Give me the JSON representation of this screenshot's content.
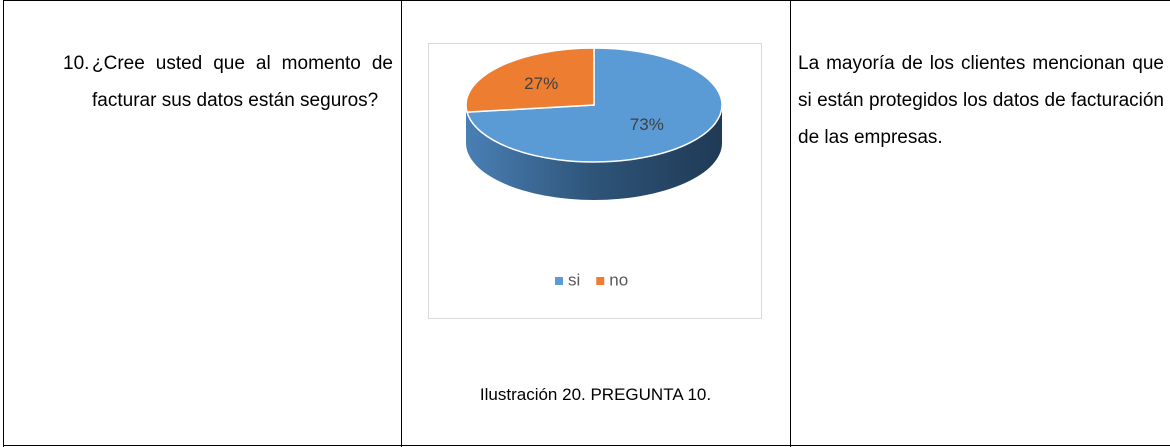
{
  "question": {
    "number": "10.",
    "text": "¿Cree usted que al momento de facturar sus datos están seguros?"
  },
  "chart_data": {
    "type": "pie",
    "categories": [
      "si",
      "no"
    ],
    "values": [
      73,
      27
    ],
    "value_labels": [
      "73%",
      "27%"
    ],
    "colors": [
      "#5b9bd5",
      "#ed7d31"
    ],
    "legend": "bottom"
  },
  "caption": "Ilustración 20. PREGUNTA 10.",
  "answer": "La mayoría de los clientes mencionan que si están protegidos los datos de facturación de las empresas."
}
